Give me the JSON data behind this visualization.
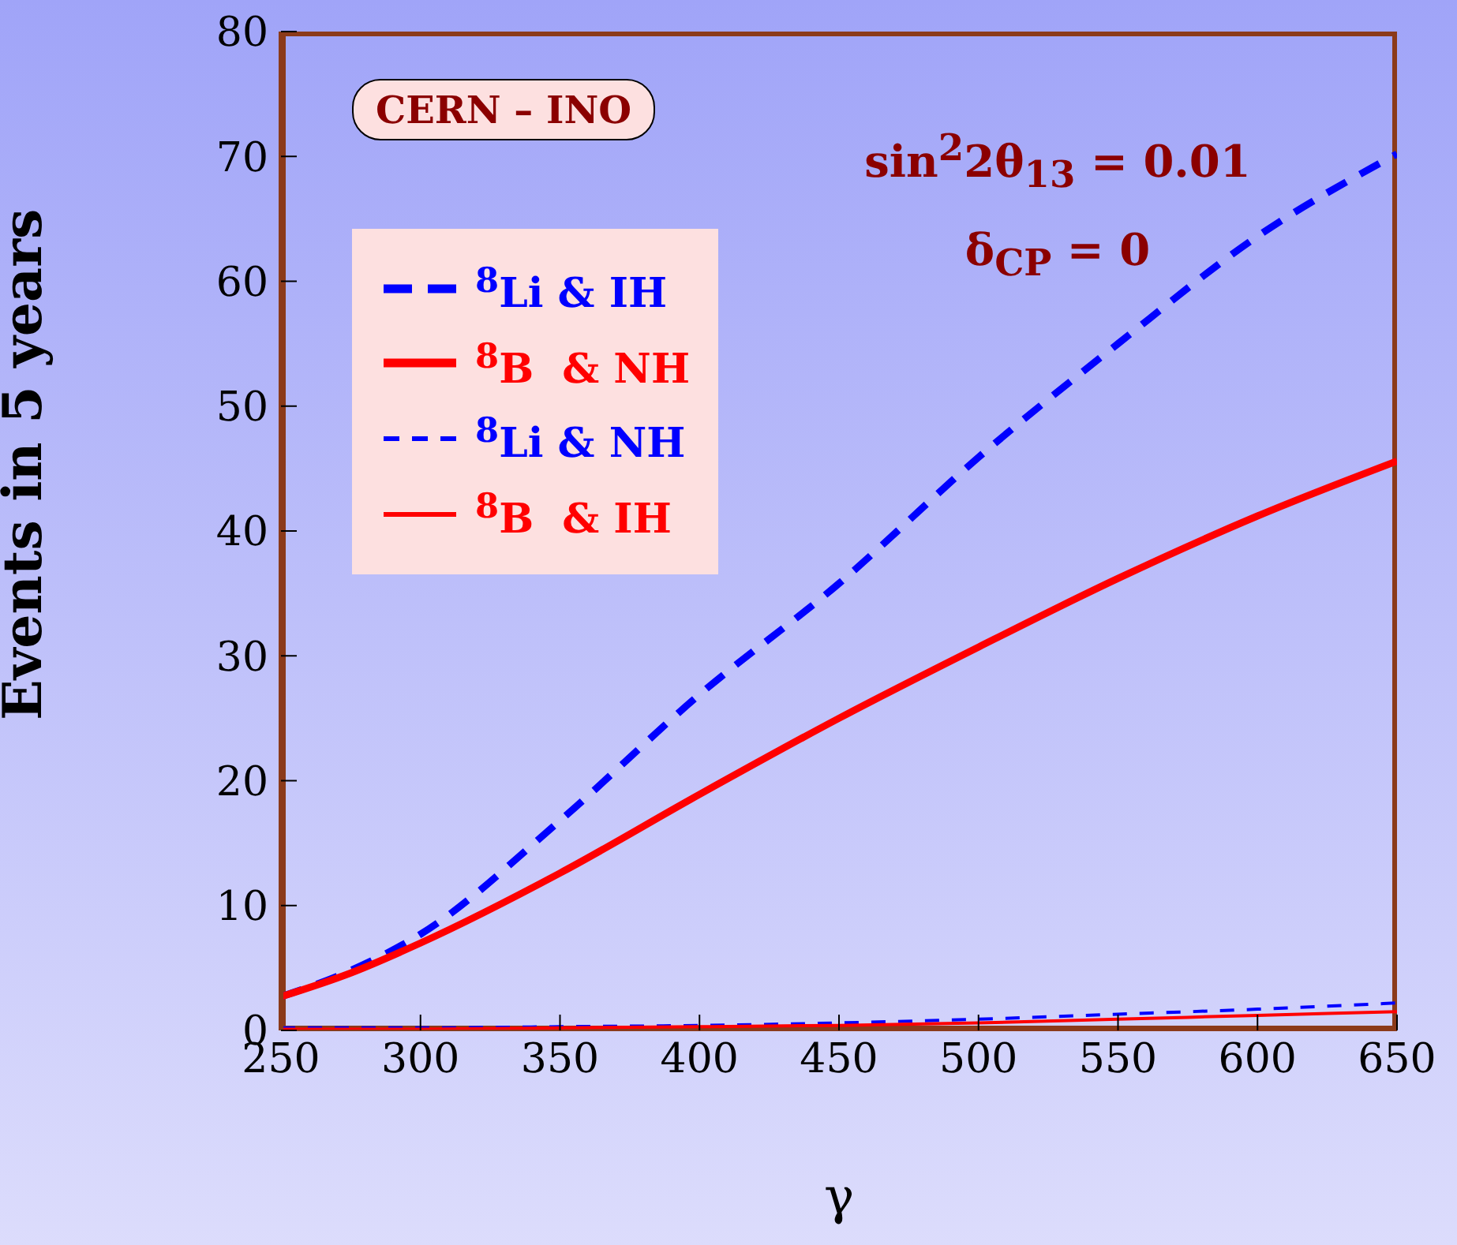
{
  "chart_data": {
    "type": "line",
    "xlabel": "γ",
    "ylabel": "Events in 5 years",
    "x": [
      250,
      275,
      300,
      350,
      400,
      450,
      500,
      550,
      600,
      650
    ],
    "xlim": [
      250,
      650
    ],
    "xticks": [
      250,
      300,
      350,
      400,
      450,
      500,
      550,
      600,
      650
    ],
    "ylim": [
      0,
      80
    ],
    "yticks": [
      0,
      10,
      20,
      30,
      40,
      50,
      60,
      70,
      80
    ],
    "grid": false,
    "legend": "top left",
    "marker": "none",
    "annotations": [
      "CERN – INO",
      "sin$^{2}$2θ$_{13}$ = 0.01",
      "δ$_{CP}$ = 0"
    ],
    "series": [
      {
        "name": "$^{8}$Li & IH",
        "color": "#0000ff",
        "line_style": "dashed",
        "values": [
          2.7,
          4.8,
          7.7,
          16.8,
          26.9,
          35.8,
          45.9,
          55.0,
          63.6,
          70.2
        ]
      },
      {
        "name": "$^{8}$B  & NH",
        "color": "#ff0000",
        "line_style": "solid",
        "values": [
          2.7,
          4.6,
          7.0,
          12.6,
          18.9,
          25.0,
          30.7,
          36.2,
          41.2,
          45.6
        ]
      },
      {
        "name": "$^{8}$Li & NH",
        "color": "#0000ff",
        "line_style": "dashed",
        "values": [
          0.2,
          0.2,
          0.2,
          0.3,
          0.4,
          0.6,
          0.9,
          1.3,
          1.7,
          2.2
        ]
      },
      {
        "name": "$^{8}$B  & IH",
        "color": "#ff0000",
        "line_style": "solid",
        "values": [
          0.1,
          0.1,
          0.1,
          0.2,
          0.3,
          0.4,
          0.6,
          0.9,
          1.2,
          1.5
        ]
      }
    ]
  }
}
